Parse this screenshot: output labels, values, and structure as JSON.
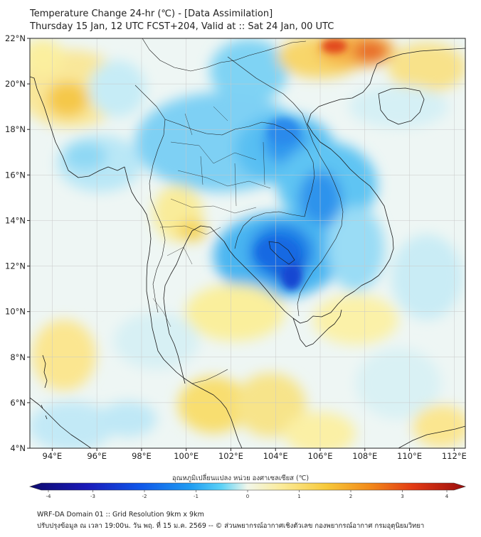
{
  "header": {
    "title": "Temperature Change 24-hr (℃) - [Data Assimilation]",
    "subtitle": "Thursday 15 Jan, 12 UTC FCST+204, Valid at :: Sat 24 Jan, 00 UTC"
  },
  "map": {
    "lat_range": [
      4,
      22
    ],
    "lon_range": [
      93,
      112.5
    ],
    "lat_ticks": [
      {
        "value": 22,
        "label": "22°N"
      },
      {
        "value": 20,
        "label": "20°N"
      },
      {
        "value": 18,
        "label": "18°N"
      },
      {
        "value": 16,
        "label": "16°N"
      },
      {
        "value": 14,
        "label": "14°N"
      },
      {
        "value": 12,
        "label": "12°N"
      },
      {
        "value": 10,
        "label": "10°N"
      },
      {
        "value": 8,
        "label": "8°N"
      },
      {
        "value": 6,
        "label": "6°N"
      },
      {
        "value": 4,
        "label": "4°N"
      }
    ],
    "lon_ticks": [
      {
        "value": 94,
        "label": "94°E"
      },
      {
        "value": 96,
        "label": "96°E"
      },
      {
        "value": 98,
        "label": "98°E"
      },
      {
        "value": 100,
        "label": "100°E"
      },
      {
        "value": 102,
        "label": "102°E"
      },
      {
        "value": 104,
        "label": "104°E"
      },
      {
        "value": 106,
        "label": "106°E"
      },
      {
        "value": 108,
        "label": "108°E"
      },
      {
        "value": 110,
        "label": "110°E"
      },
      {
        "value": 112,
        "label": "112°E"
      }
    ]
  },
  "colorbar": {
    "label": "อุณหภูมิเปลี่ยนแปลง หน่วย องศาเซลเซียส (℃)",
    "min": -4,
    "max": 4,
    "ticks": [
      {
        "value": -4,
        "label": "-4"
      },
      {
        "value": -3,
        "label": "-3"
      },
      {
        "value": -2,
        "label": "-2"
      },
      {
        "value": -1,
        "label": "-1"
      },
      {
        "value": 0,
        "label": "0"
      },
      {
        "value": 1,
        "label": "1"
      },
      {
        "value": 2,
        "label": "2"
      },
      {
        "value": 3,
        "label": "3"
      },
      {
        "value": 4,
        "label": "4"
      }
    ],
    "colors": [
      "#0d0a6e",
      "#1a1ab8",
      "#0f55e8",
      "#1f9df2",
      "#5cd2f7",
      "#b8ecf8",
      "#f2f7ea",
      "#fbeb98",
      "#f7c93a",
      "#f28a1a",
      "#e23a14",
      "#9a0d0d"
    ]
  },
  "footer": {
    "line1": "WRF-DA Domain 01 :: Grid Resolution 9km x 9km",
    "line2": "ปรับปรุงข้อมูล ณ เวลา 19:00น. วัน พฤ. ที่ 15 ม.ค. 2569 -- © ส่วนพยากรณ์อากาศเชิงตัวเลข กองพยากรณ์อากาศ กรมอุตุนิยมวิทยา"
  }
}
